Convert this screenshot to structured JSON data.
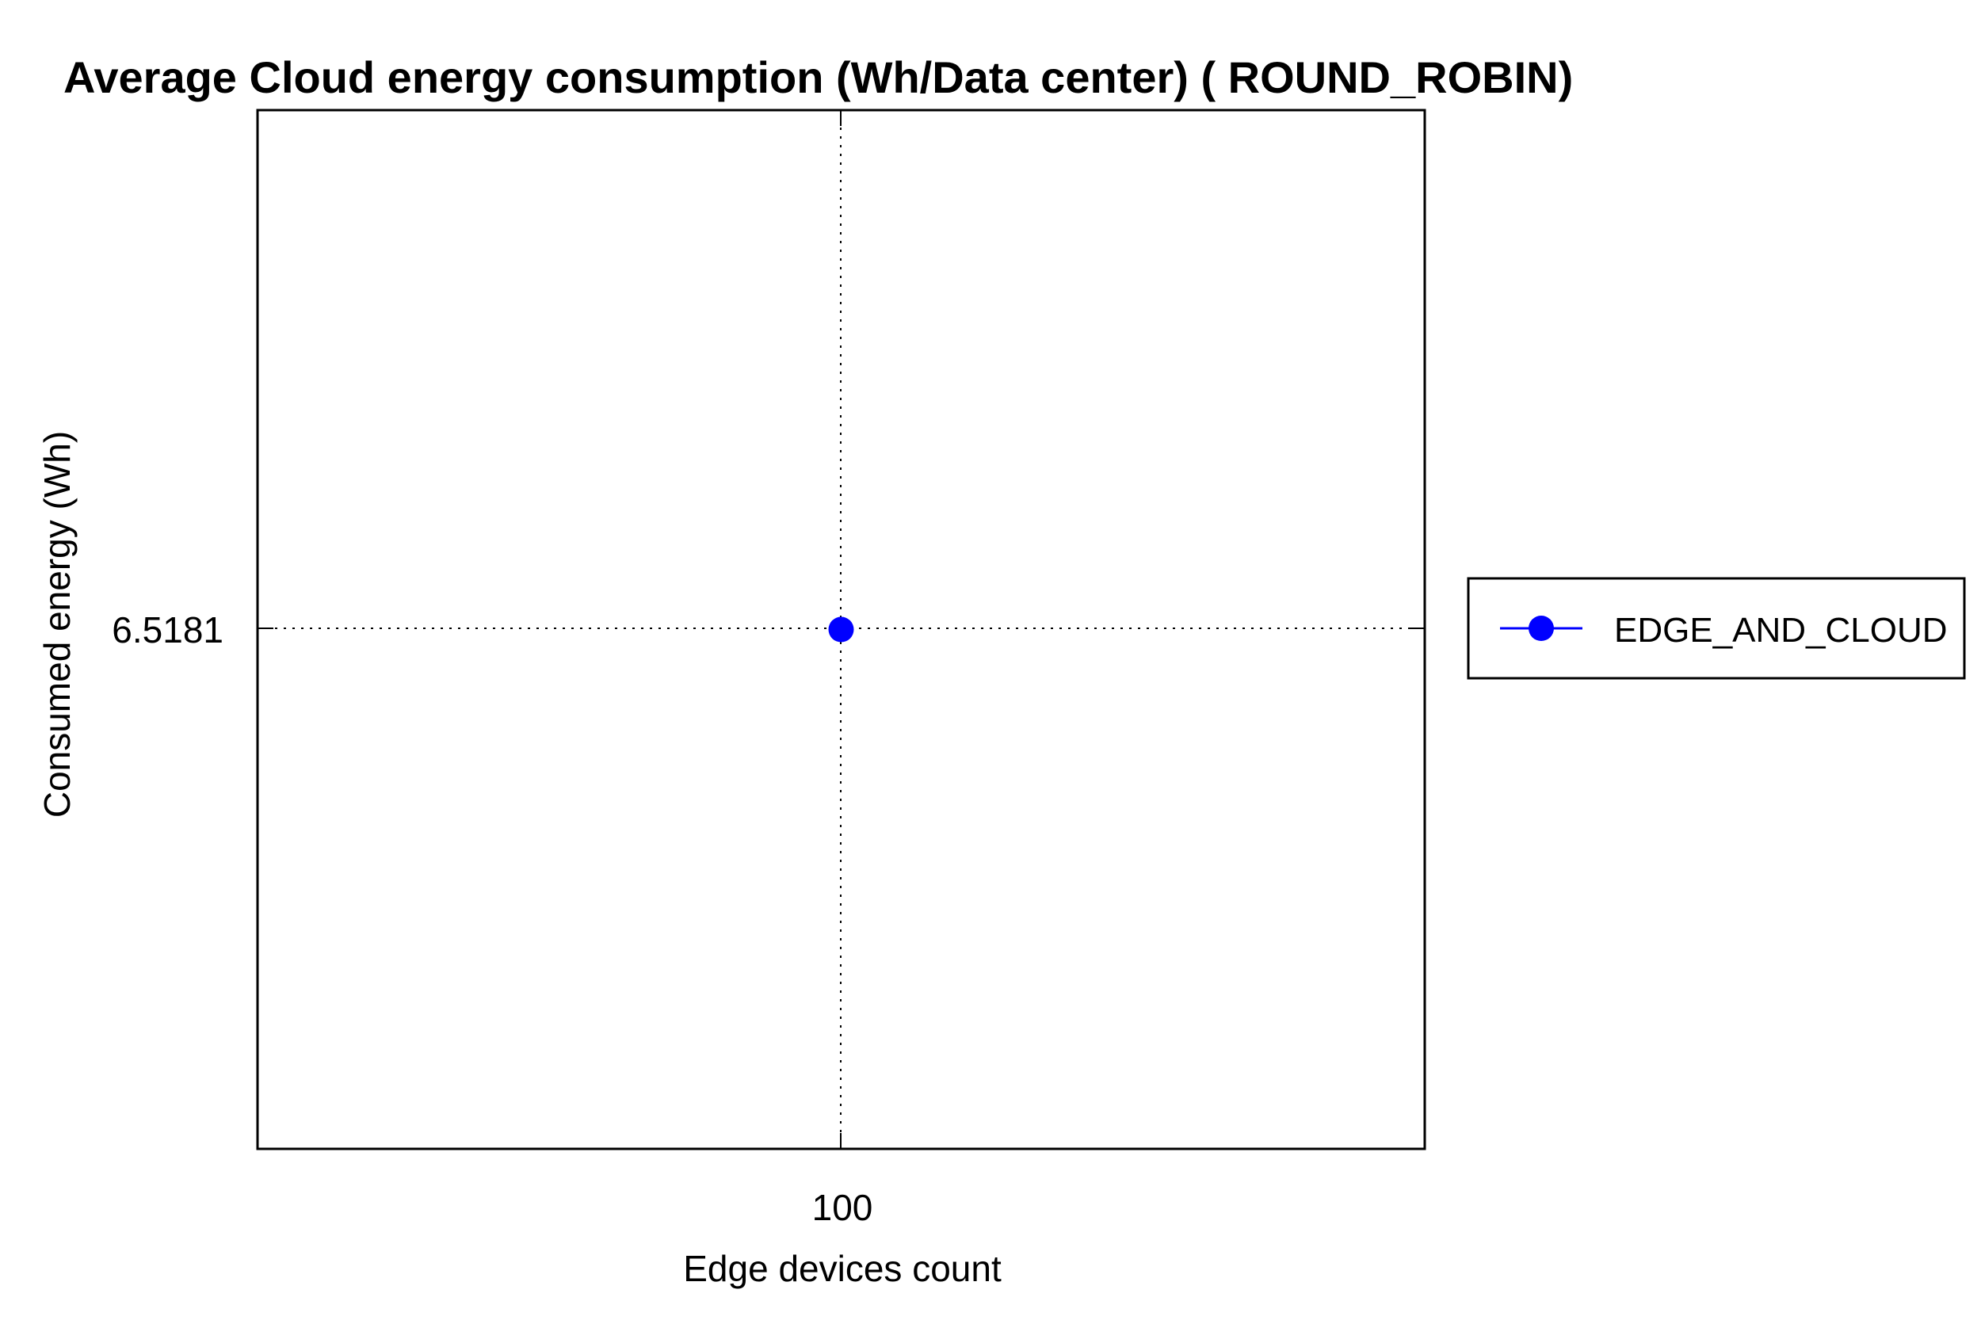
{
  "chart_data": {
    "type": "line",
    "title": "Average Cloud energy consumption (Wh/Data center) ( ROUND_ROBIN)",
    "xlabel": "Edge devices count",
    "ylabel": "Consumed energy (Wh)",
    "x_ticks": [
      "100"
    ],
    "y_ticks": [
      "6.5181"
    ],
    "grid": true,
    "legend_position": "right",
    "series": [
      {
        "name": "EDGE_AND_CLOUD",
        "color": "#0000ff",
        "marker": "circle",
        "points": [
          {
            "x": 100,
            "y": 6.5181
          }
        ]
      }
    ]
  }
}
